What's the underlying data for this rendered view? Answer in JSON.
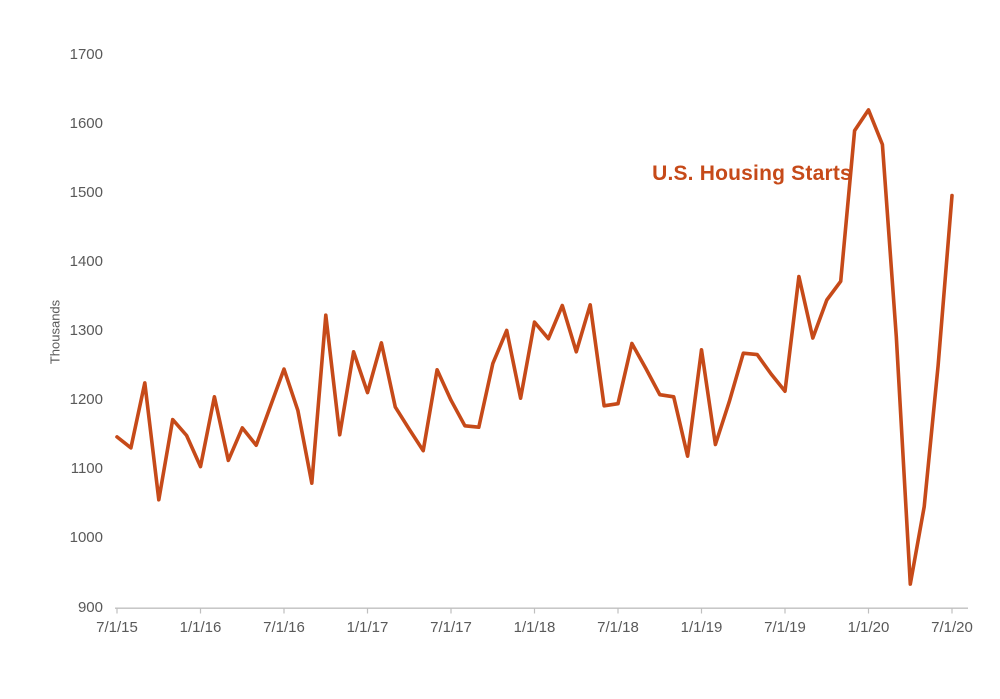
{
  "page": {
    "background_color": "#FFFFFF"
  },
  "chart_data": {
    "type": "line",
    "title": "U.S. Housing Starts",
    "series_name": "U.S. Housing Starts",
    "xlabel": "",
    "ylabel": "Thousands",
    "ylim": [
      900,
      1700
    ],
    "ytick_step": 100,
    "ytick_labels": [
      "900",
      "1000",
      "1100",
      "1200",
      "1300",
      "1400",
      "1500",
      "1600",
      "1700"
    ],
    "xtick_labels": [
      "7/1/15",
      "1/1/16",
      "7/1/16",
      "1/1/17",
      "7/1/17",
      "1/1/18",
      "7/1/18",
      "1/1/19",
      "7/1/19",
      "1/1/20",
      "7/1/20"
    ],
    "xtick_month_interval": 6,
    "grid": "off",
    "legend": "none",
    "line_color": "#C64A19",
    "title_color": "#C64A19",
    "axis_color": "#BFBFBF",
    "tick_label_color": "#595959",
    "x": [
      "7/1/15",
      "8/1/15",
      "9/1/15",
      "10/1/15",
      "11/1/15",
      "12/1/15",
      "1/1/16",
      "2/1/16",
      "3/1/16",
      "4/1/16",
      "5/1/16",
      "6/1/16",
      "7/1/16",
      "8/1/16",
      "9/1/16",
      "10/1/16",
      "11/1/16",
      "12/1/16",
      "1/1/17",
      "2/1/17",
      "3/1/17",
      "4/1/17",
      "5/1/17",
      "6/1/17",
      "7/1/17",
      "8/1/17",
      "9/1/17",
      "10/1/17",
      "11/1/17",
      "12/1/17",
      "1/1/18",
      "2/1/18",
      "3/1/18",
      "4/1/18",
      "5/1/18",
      "6/1/18",
      "7/1/18",
      "8/1/18",
      "9/1/18",
      "10/1/18",
      "11/1/18",
      "12/1/18",
      "1/1/19",
      "2/1/19",
      "3/1/19",
      "4/1/19",
      "5/1/19",
      "6/1/19",
      "7/1/19",
      "8/1/19",
      "9/1/19",
      "10/1/19",
      "11/1/19",
      "12/1/19",
      "1/1/20",
      "2/1/20",
      "3/1/20",
      "4/1/20",
      "5/1/20",
      "6/1/20",
      "7/1/20"
    ],
    "values": [
      1147,
      1131,
      1225,
      1056,
      1172,
      1149,
      1104,
      1205,
      1113,
      1160,
      1135,
      1190,
      1245,
      1185,
      1080,
      1323,
      1150,
      1270,
      1211,
      1283,
      1190,
      1158,
      1127,
      1244,
      1200,
      1163,
      1161,
      1253,
      1301,
      1203,
      1313,
      1289,
      1337,
      1270,
      1338,
      1192,
      1195,
      1282,
      1246,
      1208,
      1205,
      1119,
      1273,
      1136,
      1198,
      1268,
      1266,
      1238,
      1213,
      1379,
      1290,
      1345,
      1372,
      1590,
      1620,
      1570,
      1292,
      934,
      1046,
      1250,
      1496
    ]
  }
}
